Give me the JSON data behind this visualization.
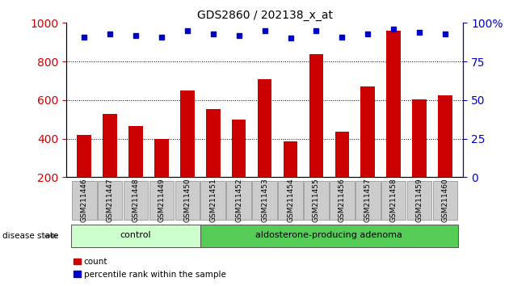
{
  "title": "GDS2860 / 202138_x_at",
  "samples": [
    "GSM211446",
    "GSM211447",
    "GSM211448",
    "GSM211449",
    "GSM211450",
    "GSM211451",
    "GSM211452",
    "GSM211453",
    "GSM211454",
    "GSM211455",
    "GSM211456",
    "GSM211457",
    "GSM211458",
    "GSM211459",
    "GSM211460"
  ],
  "counts": [
    420,
    530,
    465,
    400,
    650,
    555,
    500,
    710,
    385,
    840,
    435,
    670,
    960,
    605,
    625
  ],
  "percentiles": [
    91,
    93,
    92,
    91,
    95,
    93,
    92,
    95,
    90,
    95,
    91,
    93,
    96,
    94,
    93
  ],
  "groups": [
    "control",
    "control",
    "control",
    "control",
    "control",
    "aldosterone-producing adenoma",
    "aldosterone-producing adenoma",
    "aldosterone-producing adenoma",
    "aldosterone-producing adenoma",
    "aldosterone-producing adenoma",
    "aldosterone-producing adenoma",
    "aldosterone-producing adenoma",
    "aldosterone-producing adenoma",
    "aldosterone-producing adenoma",
    "aldosterone-producing adenoma"
  ],
  "bar_color": "#cc0000",
  "dot_color": "#0000cc",
  "ylim_left": [
    200,
    1000
  ],
  "ylim_right": [
    0,
    100
  ],
  "yticks_left": [
    200,
    400,
    600,
    800,
    1000
  ],
  "yticks_right": [
    0,
    25,
    50,
    75,
    100
  ],
  "grid_values": [
    400,
    600,
    800
  ],
  "control_color": "#ccffcc",
  "adenoma_color": "#55cc55",
  "label_bg_color": "#cccccc",
  "disease_label": "disease state",
  "group_labels": {
    "control": "control",
    "adenoma": "aldosterone-producing adenoma"
  },
  "legend_count": "count",
  "legend_percentile": "percentile rank within the sample",
  "figsize": [
    6.3,
    3.54
  ],
  "dpi": 100
}
